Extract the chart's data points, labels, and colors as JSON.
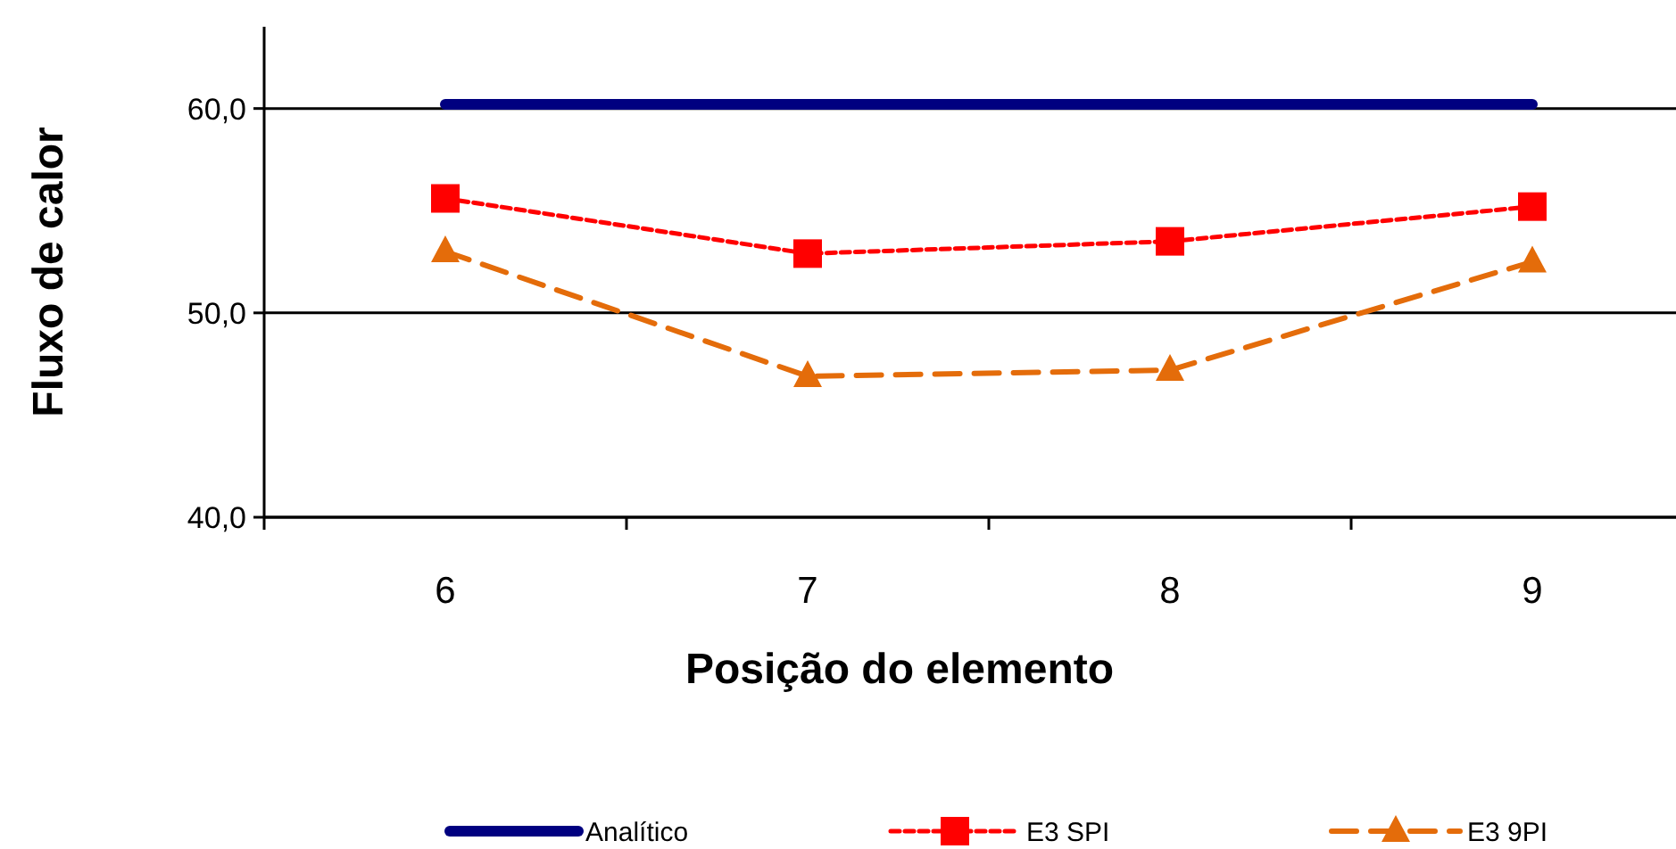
{
  "chart_data": {
    "type": "line",
    "xlabel": "Posição do elemento",
    "ylabel": "Fluxo de calor",
    "categories": [
      "6",
      "7",
      "8",
      "9"
    ],
    "ylim": [
      40,
      64
    ],
    "yticks": [
      {
        "value": 40,
        "label": "40,0"
      },
      {
        "value": 50,
        "label": "50,0"
      },
      {
        "value": 60,
        "label": "60,0"
      }
    ],
    "grid": "y",
    "legend": "bottom",
    "series": [
      {
        "name": "Analítico",
        "color": "#000080",
        "values": [
          60.2,
          60.2,
          60.2,
          60.2
        ],
        "marker": "none",
        "line_style": "solid"
      },
      {
        "name": "E3 SPI",
        "color": "#ff0000",
        "values": [
          55.6,
          52.9,
          53.5,
          55.2
        ],
        "marker": "square",
        "line_style": "dotted"
      },
      {
        "name": "E3 9PI",
        "color": "#e46c0a",
        "values": [
          53.0,
          46.9,
          47.2,
          52.5
        ],
        "marker": "triangle",
        "line_style": "dashed"
      }
    ]
  }
}
